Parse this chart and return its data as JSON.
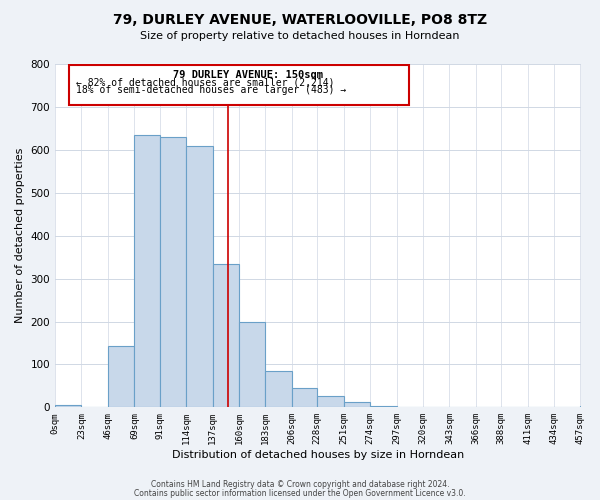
{
  "title": "79, DURLEY AVENUE, WATERLOOVILLE, PO8 8TZ",
  "subtitle": "Size of property relative to detached houses in Horndean",
  "xlabel": "Distribution of detached houses by size in Horndean",
  "ylabel": "Number of detached properties",
  "footer_line1": "Contains HM Land Registry data © Crown copyright and database right 2024.",
  "footer_line2": "Contains public sector information licensed under the Open Government Licence v3.0.",
  "annotation_title": "79 DURLEY AVENUE: 150sqm",
  "annotation_line2": "← 82% of detached houses are smaller (2,214)",
  "annotation_line3": "18% of semi-detached houses are larger (483) →",
  "bar_edges": [
    0,
    23,
    46,
    69,
    91,
    114,
    137,
    160,
    183,
    206,
    228,
    251,
    274,
    297,
    320,
    343,
    366,
    388,
    411,
    434,
    457
  ],
  "bar_heights": [
    5,
    0,
    142,
    635,
    630,
    609,
    333,
    200,
    84,
    46,
    27,
    12,
    2,
    0,
    0,
    0,
    0,
    0,
    0,
    0,
    3
  ],
  "bar_color": "#c8d8ea",
  "bar_edge_color": "#6aa0c8",
  "property_line_x": 150,
  "property_line_color": "#cc0000",
  "annotation_box_color": "#cc0000",
  "ylim": [
    0,
    800
  ],
  "tick_labels": [
    "0sqm",
    "23sqm",
    "46sqm",
    "69sqm",
    "91sqm",
    "114sqm",
    "137sqm",
    "160sqm",
    "183sqm",
    "206sqm",
    "228sqm",
    "251sqm",
    "274sqm",
    "297sqm",
    "320sqm",
    "343sqm",
    "366sqm",
    "388sqm",
    "411sqm",
    "434sqm",
    "457sqm"
  ],
  "bg_color": "#eef2f7",
  "plot_bg_color": "#ffffff",
  "grid_color": "#d0d8e4"
}
